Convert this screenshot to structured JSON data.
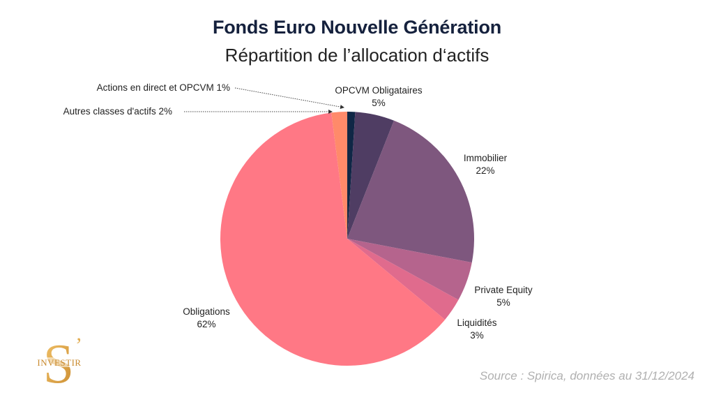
{
  "header": {
    "title": "Fonds Euro Nouvelle Génération",
    "subtitle": "Répartition de l’allocation d‘actifs"
  },
  "labels": {
    "actions": "Actions en direct et OPCVM 1%",
    "autres": "Autres classes d'actifs 2%",
    "opcvm_name": "OPCVM Obligataires",
    "opcvm_pct": "5%",
    "immo_name": "Immobilier",
    "immo_pct": "22%",
    "pe_name": "Private Equity",
    "pe_pct": "5%",
    "liq_name": "Liquidités",
    "liq_pct": "3%",
    "oblig_name": "Obligations",
    "oblig_pct": "62%"
  },
  "footer": {
    "source": "Source : Spirica, données au 31/12/2024"
  },
  "logo": {
    "letter": "S",
    "apostrophe": "’",
    "text": "INVESTIR",
    "color": "#d9a24a"
  },
  "chart_data": {
    "type": "pie",
    "title": "Fonds Euro Nouvelle Génération",
    "subtitle": "Répartition de l’allocation d‘actifs",
    "categories": [
      "Actions en direct et OPCVM",
      "OPCVM Obligataires",
      "Immobilier",
      "Private Equity",
      "Liquidités",
      "Obligations",
      "Autres classes d'actifs"
    ],
    "values": [
      1,
      5,
      22,
      5,
      3,
      62,
      2
    ],
    "unit": "%",
    "colors": [
      "#0f2746",
      "#4f3d63",
      "#7e577e",
      "#b5648d",
      "#e06b8d",
      "#ff7885",
      "#ff8a6a"
    ],
    "start_angle": "12 o'clock, clockwise",
    "source": "Source : Spirica, données au 31/12/2024"
  }
}
